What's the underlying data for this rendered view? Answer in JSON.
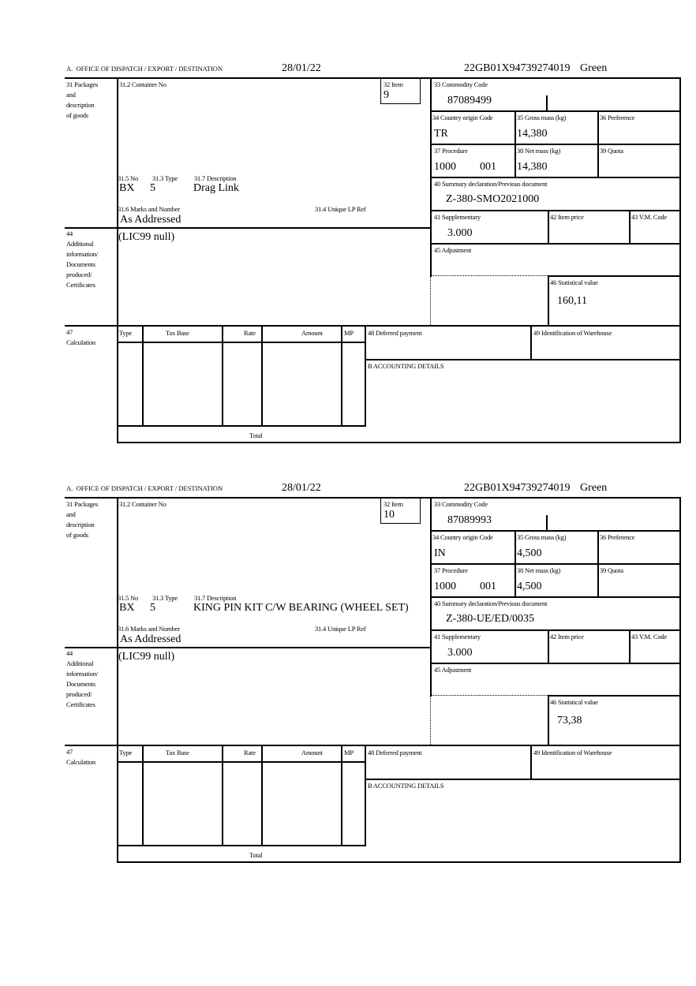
{
  "labels": {
    "office": "A.  OFFICE OF DISPATCH / EXPORT / DESTINATION",
    "packages": "31 Packages\nand\ndescription\nof goods",
    "container_no": "31.2 Container No",
    "item": "32 Item",
    "no": "31.5 No",
    "type_31_3": "31.3 Type",
    "description": "31.7 Description",
    "marks": "31.6 Marks and Number",
    "unique_lp": "31.4 Unique LP Ref",
    "additional_info": "44\nAdditional\ninformation/\nDocuments\nproduced/\nCertificates",
    "commodity_code": "33 Commodity Code",
    "country_origin": "34 Country origin Code",
    "gross_mass": "35 Gross mass (kg)",
    "preference": "36 Preference",
    "procedure": "37 Procedure",
    "net_mass": "38 Net mass (kg)",
    "quota": "39 Quota",
    "summary_decl": "40 Summary declaration/Previous document",
    "supplementary": "41 Supplementary",
    "item_price": "42 Item price",
    "vm_code": "43 V.M. Code",
    "adjustment": "45 Adjustment",
    "statistical_value": "46 Statistical value",
    "calculation": "47\nCalculation",
    "calc_type": "Type",
    "tax_base": "Tax Base",
    "rate": "Rate",
    "amount": "Amount",
    "mp": "MP",
    "deferred_payment": "48 Deferred payment",
    "warehouse": "49 Identification of Warehouse",
    "accounting": "B ACCOUNTING DETAILS",
    "total": "Total"
  },
  "items": [
    {
      "date": "28/01/22",
      "reference": "22GB01X94739274019",
      "route": "Green",
      "item_no": "9",
      "package_kind": "BX",
      "package_count": "5",
      "description": "Drag Link",
      "marks": "As Addressed",
      "additional_info": "(LIC99 null)",
      "commodity_code": "87089499",
      "country_origin": "TR",
      "gross_mass": "14,380",
      "procedure": "1000",
      "procedure_add": "001",
      "net_mass": "14,380",
      "summary_decl": "Z-380-SMO2021000",
      "supplementary": "3.000",
      "statistical_value": "160,11"
    },
    {
      "date": "28/01/22",
      "reference": "22GB01X94739274019",
      "route": "Green",
      "item_no": "10",
      "package_kind": "BX",
      "package_count": "5",
      "description": "KING PIN KIT C/W BEARING (WHEEL SET)",
      "marks": "As Addressed",
      "additional_info": "(LIC99 null)",
      "commodity_code": "87089993",
      "country_origin": "IN",
      "gross_mass": "4,500",
      "procedure": "1000",
      "procedure_add": "001",
      "net_mass": "4,500",
      "summary_decl": "Z-380-UE/ED/0035",
      "supplementary": "3.000",
      "statistical_value": "73,38"
    }
  ]
}
